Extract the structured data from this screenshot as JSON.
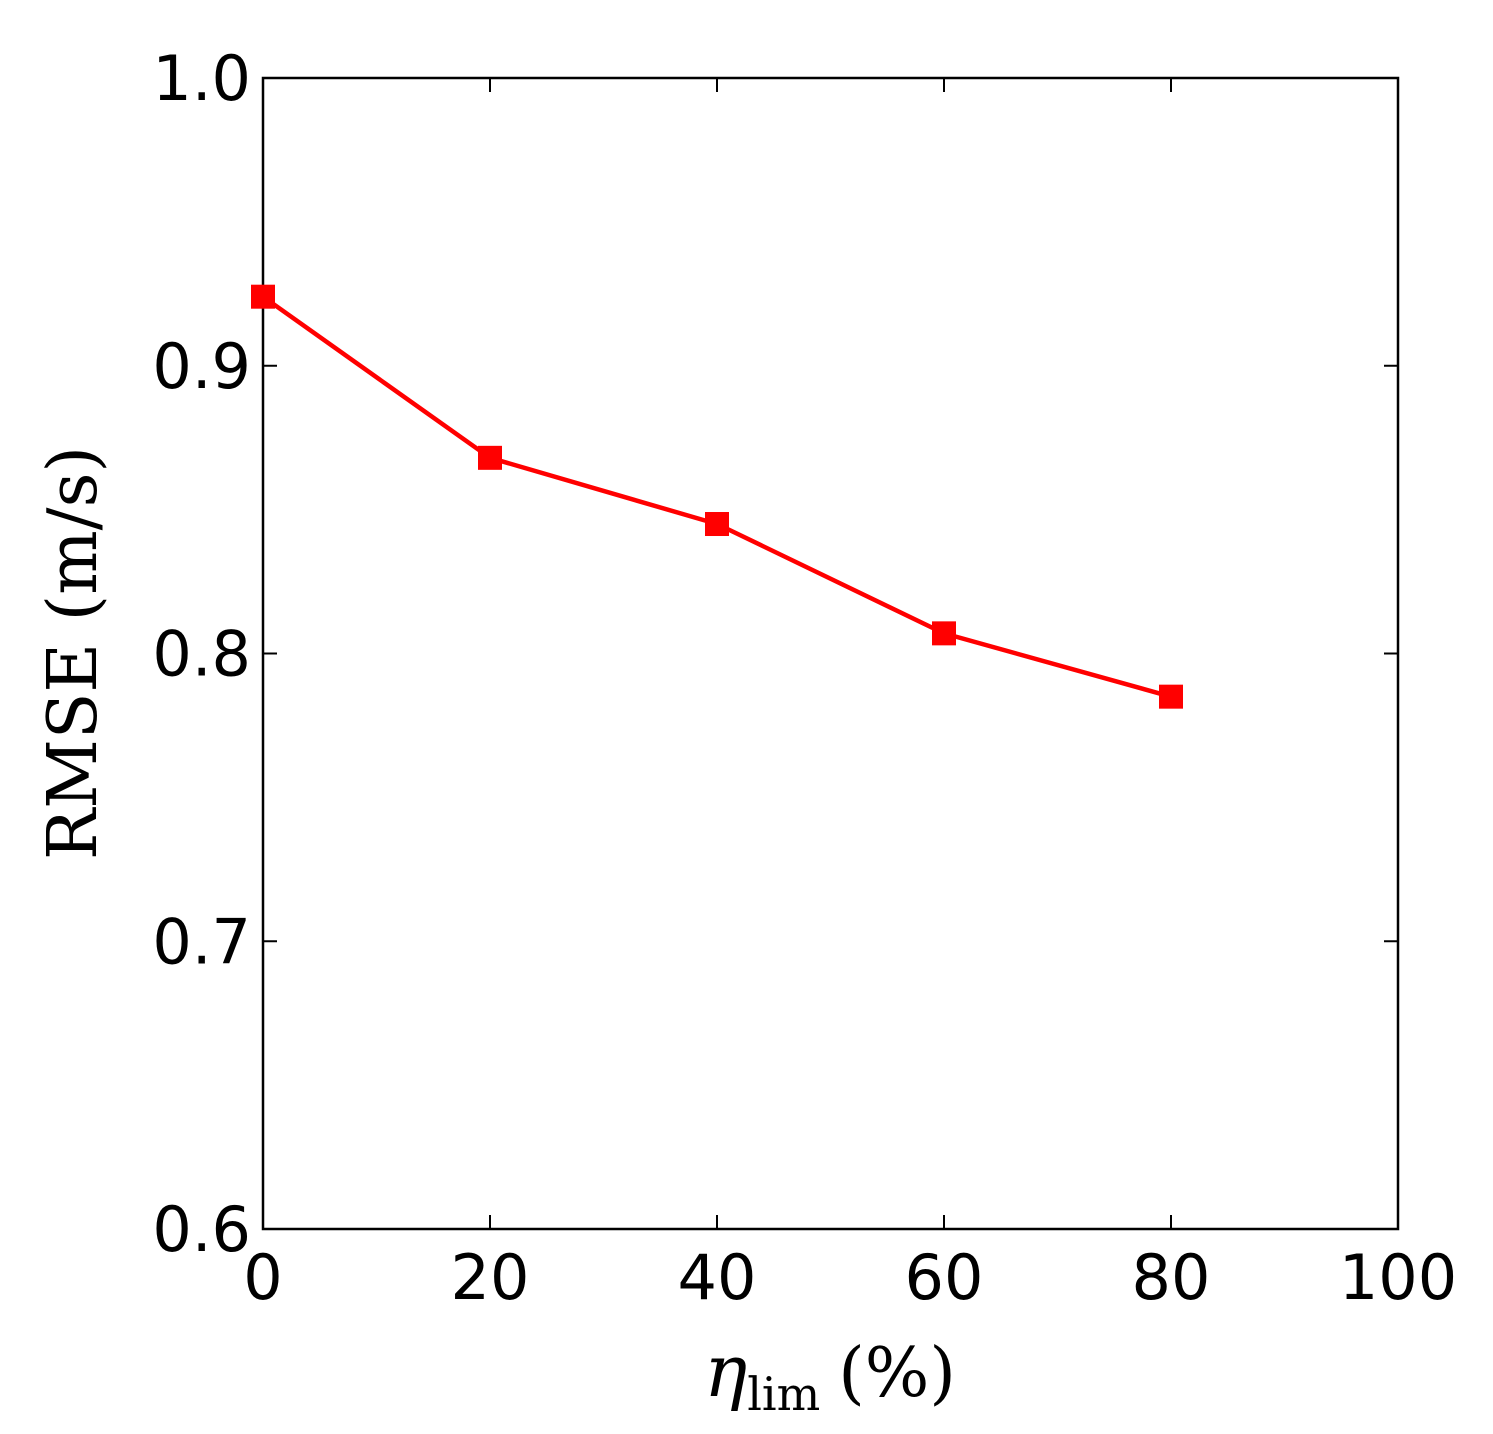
{
  "chart_data": {
    "type": "line",
    "title": "",
    "xlabel": {
      "symbol": "η",
      "subscript": "lim",
      "unit": "(%)"
    },
    "ylabel": "RMSE (m/s)",
    "xlim": [
      0,
      100
    ],
    "ylim": [
      0.6,
      1.0
    ],
    "xticks": [
      0,
      20,
      40,
      60,
      80,
      100
    ],
    "yticks": [
      0.6,
      0.7,
      0.8,
      0.9,
      1.0
    ],
    "xtick_labels": [
      "0",
      "20",
      "40",
      "60",
      "80",
      "100"
    ],
    "ytick_labels": [
      "0.6",
      "0.7",
      "0.8",
      "0.9",
      "1.0"
    ],
    "grid": false,
    "legend": "none",
    "series": [
      {
        "color": "#ff0000",
        "marker": "square",
        "x": [
          0,
          20,
          40,
          60,
          80
        ],
        "y": [
          0.924,
          0.868,
          0.845,
          0.807,
          0.785
        ]
      }
    ]
  }
}
